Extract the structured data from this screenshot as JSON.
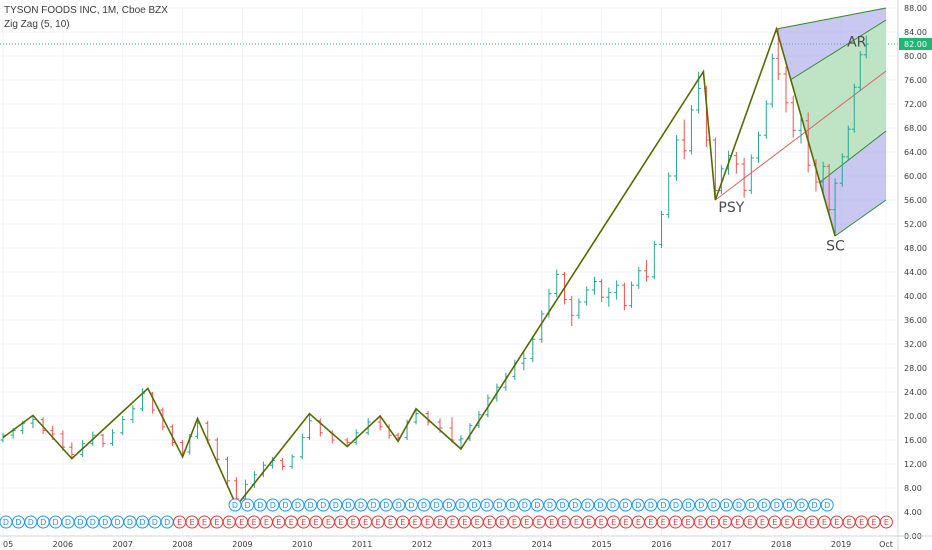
{
  "header": {
    "symbol_line": "TYSON FOODS INC, 1M, Cboe BZX",
    "indicator_line": "Zig Zag (5, 10)"
  },
  "colors": {
    "up_bar": "#26a69a",
    "down_bar": "#ef5350",
    "zigzag": "#556b00",
    "channel_fill_outer": "#9b9be8",
    "channel_fill_inner": "#bde9bd",
    "channel_line": "#2e8b2e",
    "median_line": "#e06060",
    "price_line": "#22b573",
    "dividend": "#2196f3",
    "earnings": "#e53935"
  },
  "chart_data": {
    "type": "candlestick-ohlc",
    "title": "TYSON FOODS INC, 1M, Cboe BZX",
    "x_axis_labels": [
      "05",
      "2006",
      "2007",
      "2008",
      "2009",
      "2010",
      "2011",
      "2012",
      "2013",
      "2014",
      "2015",
      "2016",
      "2017",
      "2018",
      "2019",
      "Oct"
    ],
    "y_axis_labels": [
      "88.00",
      "84.00",
      "80.00",
      "76.00",
      "72.00",
      "68.00",
      "64.00",
      "60.00",
      "56.00",
      "52.00",
      "48.00",
      "44.00",
      "40.00",
      "36.00",
      "32.00",
      "28.00",
      "24.00",
      "20.00",
      "16.00",
      "12.00",
      "8.00",
      "4.00",
      "0.00"
    ],
    "ylim": [
      0,
      88
    ],
    "last_price_label": "82.00",
    "last_price": 82.0,
    "zigzag_points": [
      {
        "x": 2005.0,
        "y": 16.4
      },
      {
        "x": 2005.5,
        "y": 20.1
      },
      {
        "x": 2006.15,
        "y": 12.9
      },
      {
        "x": 2007.42,
        "y": 24.6
      },
      {
        "x": 2008.0,
        "y": 13.2
      },
      {
        "x": 2008.25,
        "y": 19.6
      },
      {
        "x": 2008.9,
        "y": 5.0
      },
      {
        "x": 2010.12,
        "y": 20.4
      },
      {
        "x": 2010.75,
        "y": 14.9
      },
      {
        "x": 2011.3,
        "y": 20.0
      },
      {
        "x": 2011.6,
        "y": 15.8
      },
      {
        "x": 2011.9,
        "y": 21.2
      },
      {
        "x": 2012.65,
        "y": 14.5
      },
      {
        "x": 2016.7,
        "y": 77.4
      },
      {
        "x": 2016.9,
        "y": 56.0
      },
      {
        "x": 2017.92,
        "y": 84.5
      },
      {
        "x": 2018.9,
        "y": 50.0
      }
    ],
    "bars": [
      {
        "t": 2005.0,
        "o": 16.0,
        "h": 17.2,
        "l": 15.6,
        "c": 16.8
      },
      {
        "t": 2005.17,
        "o": 16.8,
        "h": 18.0,
        "l": 16.2,
        "c": 17.6
      },
      {
        "t": 2005.33,
        "o": 17.6,
        "h": 19.2,
        "l": 17.0,
        "c": 18.8
      },
      {
        "t": 2005.5,
        "o": 18.8,
        "h": 20.1,
        "l": 18.0,
        "c": 19.4
      },
      {
        "t": 2005.67,
        "o": 19.4,
        "h": 19.8,
        "l": 17.0,
        "c": 17.6
      },
      {
        "t": 2005.83,
        "o": 17.6,
        "h": 18.4,
        "l": 16.0,
        "c": 17.0
      },
      {
        "t": 2006.0,
        "o": 17.0,
        "h": 17.6,
        "l": 14.2,
        "c": 14.8
      },
      {
        "t": 2006.15,
        "o": 14.8,
        "h": 15.6,
        "l": 12.9,
        "c": 13.6
      },
      {
        "t": 2006.33,
        "o": 13.6,
        "h": 16.0,
        "l": 13.2,
        "c": 15.4
      },
      {
        "t": 2006.5,
        "o": 15.4,
        "h": 17.4,
        "l": 15.0,
        "c": 16.8
      },
      {
        "t": 2006.67,
        "o": 16.8,
        "h": 17.0,
        "l": 14.8,
        "c": 15.4
      },
      {
        "t": 2006.83,
        "o": 15.4,
        "h": 17.8,
        "l": 15.0,
        "c": 17.2
      },
      {
        "t": 2007.0,
        "o": 17.2,
        "h": 20.0,
        "l": 16.8,
        "c": 19.4
      },
      {
        "t": 2007.17,
        "o": 19.4,
        "h": 21.8,
        "l": 18.8,
        "c": 21.2
      },
      {
        "t": 2007.33,
        "o": 21.2,
        "h": 24.6,
        "l": 20.8,
        "c": 23.8
      },
      {
        "t": 2007.5,
        "o": 23.8,
        "h": 24.0,
        "l": 20.4,
        "c": 21.0
      },
      {
        "t": 2007.67,
        "o": 21.0,
        "h": 21.4,
        "l": 17.6,
        "c": 18.2
      },
      {
        "t": 2007.83,
        "o": 18.2,
        "h": 18.6,
        "l": 15.0,
        "c": 15.6
      },
      {
        "t": 2008.0,
        "o": 15.6,
        "h": 16.0,
        "l": 13.2,
        "c": 14.0
      },
      {
        "t": 2008.12,
        "o": 14.0,
        "h": 17.0,
        "l": 13.6,
        "c": 16.6
      },
      {
        "t": 2008.25,
        "o": 16.6,
        "h": 19.6,
        "l": 16.2,
        "c": 18.8
      },
      {
        "t": 2008.42,
        "o": 18.8,
        "h": 19.2,
        "l": 15.4,
        "c": 16.0
      },
      {
        "t": 2008.58,
        "o": 16.0,
        "h": 16.4,
        "l": 12.0,
        "c": 12.8
      },
      {
        "t": 2008.75,
        "o": 12.8,
        "h": 13.2,
        "l": 8.6,
        "c": 9.2
      },
      {
        "t": 2008.9,
        "o": 9.2,
        "h": 9.8,
        "l": 5.0,
        "c": 6.2
      },
      {
        "t": 2009.05,
        "o": 6.2,
        "h": 9.4,
        "l": 5.8,
        "c": 8.6
      },
      {
        "t": 2009.2,
        "o": 8.6,
        "h": 10.8,
        "l": 8.0,
        "c": 10.2
      },
      {
        "t": 2009.35,
        "o": 10.2,
        "h": 12.4,
        "l": 9.8,
        "c": 11.8
      },
      {
        "t": 2009.5,
        "o": 11.8,
        "h": 13.2,
        "l": 11.2,
        "c": 12.6
      },
      {
        "t": 2009.67,
        "o": 12.6,
        "h": 13.0,
        "l": 11.0,
        "c": 11.6
      },
      {
        "t": 2009.83,
        "o": 11.6,
        "h": 13.6,
        "l": 11.2,
        "c": 13.2
      },
      {
        "t": 2010.0,
        "o": 13.2,
        "h": 17.0,
        "l": 12.8,
        "c": 16.4
      },
      {
        "t": 2010.12,
        "o": 16.4,
        "h": 20.4,
        "l": 16.0,
        "c": 19.2
      },
      {
        "t": 2010.3,
        "o": 19.2,
        "h": 19.6,
        "l": 16.6,
        "c": 17.2
      },
      {
        "t": 2010.5,
        "o": 17.2,
        "h": 17.6,
        "l": 15.4,
        "c": 16.0
      },
      {
        "t": 2010.75,
        "o": 16.0,
        "h": 16.4,
        "l": 14.9,
        "c": 15.6
      },
      {
        "t": 2010.9,
        "o": 15.6,
        "h": 17.8,
        "l": 15.2,
        "c": 17.2
      },
      {
        "t": 2011.1,
        "o": 17.2,
        "h": 19.6,
        "l": 16.8,
        "c": 19.0
      },
      {
        "t": 2011.3,
        "o": 19.0,
        "h": 20.0,
        "l": 17.6,
        "c": 18.2
      },
      {
        "t": 2011.45,
        "o": 18.2,
        "h": 18.6,
        "l": 16.2,
        "c": 16.8
      },
      {
        "t": 2011.6,
        "o": 16.8,
        "h": 17.2,
        "l": 15.8,
        "c": 16.4
      },
      {
        "t": 2011.75,
        "o": 16.4,
        "h": 19.4,
        "l": 16.0,
        "c": 19.0
      },
      {
        "t": 2011.9,
        "o": 19.0,
        "h": 21.2,
        "l": 18.6,
        "c": 20.4
      },
      {
        "t": 2012.1,
        "o": 20.4,
        "h": 20.8,
        "l": 18.4,
        "c": 19.0
      },
      {
        "t": 2012.3,
        "o": 19.0,
        "h": 19.6,
        "l": 17.2,
        "c": 18.0
      },
      {
        "t": 2012.5,
        "o": 18.0,
        "h": 19.8,
        "l": 15.6,
        "c": 16.0
      },
      {
        "t": 2012.65,
        "o": 16.0,
        "h": 16.8,
        "l": 14.5,
        "c": 16.2
      },
      {
        "t": 2012.8,
        "o": 16.2,
        "h": 18.8,
        "l": 15.8,
        "c": 18.4
      },
      {
        "t": 2012.95,
        "o": 18.4,
        "h": 20.8,
        "l": 18.0,
        "c": 20.2
      },
      {
        "t": 2013.1,
        "o": 20.2,
        "h": 23.6,
        "l": 19.8,
        "c": 23.0
      },
      {
        "t": 2013.25,
        "o": 23.0,
        "h": 25.4,
        "l": 22.4,
        "c": 24.8
      },
      {
        "t": 2013.4,
        "o": 24.8,
        "h": 27.2,
        "l": 24.2,
        "c": 26.6
      },
      {
        "t": 2013.55,
        "o": 26.6,
        "h": 29.4,
        "l": 26.0,
        "c": 28.8
      },
      {
        "t": 2013.7,
        "o": 28.8,
        "h": 30.6,
        "l": 27.6,
        "c": 29.6
      },
      {
        "t": 2013.85,
        "o": 29.6,
        "h": 33.4,
        "l": 29.0,
        "c": 32.8
      },
      {
        "t": 2014.0,
        "o": 32.8,
        "h": 37.6,
        "l": 32.2,
        "c": 37.0
      },
      {
        "t": 2014.12,
        "o": 37.0,
        "h": 41.2,
        "l": 36.4,
        "c": 40.4
      },
      {
        "t": 2014.25,
        "o": 40.4,
        "h": 44.4,
        "l": 39.8,
        "c": 43.6
      },
      {
        "t": 2014.38,
        "o": 43.6,
        "h": 44.0,
        "l": 38.6,
        "c": 39.4
      },
      {
        "t": 2014.5,
        "o": 39.4,
        "h": 40.0,
        "l": 35.0,
        "c": 36.8
      },
      {
        "t": 2014.62,
        "o": 36.8,
        "h": 39.6,
        "l": 36.2,
        "c": 39.0
      },
      {
        "t": 2014.75,
        "o": 39.0,
        "h": 41.6,
        "l": 38.4,
        "c": 41.0
      },
      {
        "t": 2014.88,
        "o": 41.0,
        "h": 43.2,
        "l": 40.2,
        "c": 42.4
      },
      {
        "t": 2015.0,
        "o": 42.4,
        "h": 42.8,
        "l": 39.0,
        "c": 39.8
      },
      {
        "t": 2015.12,
        "o": 39.8,
        "h": 41.4,
        "l": 38.2,
        "c": 40.6
      },
      {
        "t": 2015.25,
        "o": 40.6,
        "h": 42.6,
        "l": 39.4,
        "c": 41.8
      },
      {
        "t": 2015.38,
        "o": 41.8,
        "h": 42.2,
        "l": 37.6,
        "c": 38.4
      },
      {
        "t": 2015.5,
        "o": 38.4,
        "h": 42.4,
        "l": 38.0,
        "c": 41.8
      },
      {
        "t": 2015.62,
        "o": 41.8,
        "h": 44.8,
        "l": 41.2,
        "c": 44.2
      },
      {
        "t": 2015.75,
        "o": 44.2,
        "h": 46.0,
        "l": 42.4,
        "c": 43.2
      },
      {
        "t": 2015.88,
        "o": 43.2,
        "h": 49.2,
        "l": 42.8,
        "c": 48.6
      },
      {
        "t": 2016.0,
        "o": 48.6,
        "h": 54.2,
        "l": 48.0,
        "c": 53.6
      },
      {
        "t": 2016.12,
        "o": 53.6,
        "h": 60.6,
        "l": 53.0,
        "c": 60.0
      },
      {
        "t": 2016.25,
        "o": 60.0,
        "h": 66.8,
        "l": 59.2,
        "c": 66.0
      },
      {
        "t": 2016.38,
        "o": 66.0,
        "h": 69.4,
        "l": 62.8,
        "c": 64.2
      },
      {
        "t": 2016.5,
        "o": 64.2,
        "h": 71.8,
        "l": 63.6,
        "c": 71.0
      },
      {
        "t": 2016.62,
        "o": 71.0,
        "h": 77.4,
        "l": 70.4,
        "c": 74.6
      },
      {
        "t": 2016.75,
        "o": 74.6,
        "h": 75.0,
        "l": 64.8,
        "c": 66.0
      },
      {
        "t": 2016.9,
        "o": 66.0,
        "h": 66.4,
        "l": 56.0,
        "c": 57.6
      },
      {
        "t": 2017.0,
        "o": 57.6,
        "h": 61.8,
        "l": 57.0,
        "c": 61.2
      },
      {
        "t": 2017.12,
        "o": 61.2,
        "h": 64.2,
        "l": 60.2,
        "c": 63.4
      },
      {
        "t": 2017.25,
        "o": 63.4,
        "h": 64.0,
        "l": 60.4,
        "c": 62.0
      },
      {
        "t": 2017.38,
        "o": 62.0,
        "h": 63.0,
        "l": 56.4,
        "c": 57.6
      },
      {
        "t": 2017.5,
        "o": 57.6,
        "h": 63.6,
        "l": 57.0,
        "c": 63.0
      },
      {
        "t": 2017.62,
        "o": 63.0,
        "h": 67.4,
        "l": 62.2,
        "c": 66.8
      },
      {
        "t": 2017.75,
        "o": 66.8,
        "h": 72.6,
        "l": 66.2,
        "c": 72.0
      },
      {
        "t": 2017.85,
        "o": 72.0,
        "h": 80.4,
        "l": 71.4,
        "c": 79.6
      },
      {
        "t": 2017.95,
        "o": 79.6,
        "h": 84.5,
        "l": 76.0,
        "c": 77.0
      },
      {
        "t": 2018.08,
        "o": 77.0,
        "h": 78.2,
        "l": 70.6,
        "c": 72.2
      },
      {
        "t": 2018.2,
        "o": 72.2,
        "h": 73.4,
        "l": 66.4,
        "c": 67.6
      },
      {
        "t": 2018.33,
        "o": 67.6,
        "h": 70.4,
        "l": 65.4,
        "c": 69.2
      },
      {
        "t": 2018.45,
        "o": 69.2,
        "h": 70.6,
        "l": 60.6,
        "c": 61.8
      },
      {
        "t": 2018.58,
        "o": 61.8,
        "h": 62.8,
        "l": 57.4,
        "c": 59.0
      },
      {
        "t": 2018.7,
        "o": 59.0,
        "h": 62.4,
        "l": 57.2,
        "c": 61.6
      },
      {
        "t": 2018.8,
        "o": 61.6,
        "h": 62.0,
        "l": 53.6,
        "c": 54.4
      },
      {
        "t": 2018.9,
        "o": 54.4,
        "h": 59.6,
        "l": 50.0,
        "c": 58.8
      },
      {
        "t": 2019.02,
        "o": 58.8,
        "h": 63.8,
        "l": 58.2,
        "c": 63.2
      },
      {
        "t": 2019.12,
        "o": 63.2,
        "h": 68.4,
        "l": 62.6,
        "c": 67.8
      },
      {
        "t": 2019.22,
        "o": 67.8,
        "h": 75.4,
        "l": 67.2,
        "c": 74.8
      },
      {
        "t": 2019.32,
        "o": 74.8,
        "h": 80.8,
        "l": 74.2,
        "c": 80.2
      },
      {
        "t": 2019.42,
        "o": 80.2,
        "h": 83.4,
        "l": 79.6,
        "c": 82.0
      }
    ],
    "annotations": [
      {
        "text": "PSY",
        "x": 2016.95,
        "y": 54.0
      },
      {
        "text": "SC",
        "x": 2018.75,
        "y": 47.6
      },
      {
        "text": "AR",
        "x": 2019.1,
        "y": 81.6
      }
    ],
    "events_row_dividends": [
      "D",
      "D",
      "D",
      "D",
      "D",
      "D",
      "D",
      "D",
      "D",
      "D",
      "D",
      "D",
      "D",
      "D",
      "D",
      "D",
      "D",
      "D",
      "D",
      "D",
      "D",
      "D",
      "D",
      "D",
      "D",
      "D",
      "D",
      "D",
      "D",
      "D",
      "D",
      "D",
      "D",
      "D",
      "D",
      "D",
      "D",
      "D",
      "D",
      "D",
      "D",
      "D",
      "D",
      "D",
      "D",
      "D",
      "D",
      "D"
    ],
    "events_row_earnings": [
      "D",
      "D",
      "D",
      "D",
      "D",
      "D",
      "D",
      "D",
      "D",
      "D",
      "D",
      "D",
      "D",
      "D",
      "E",
      "E",
      "E",
      "E",
      "E",
      "E",
      "E",
      "E",
      "E",
      "E",
      "E",
      "E",
      "E",
      "E",
      "E",
      "E",
      "E",
      "E",
      "E",
      "E",
      "E",
      "E",
      "E",
      "E",
      "E",
      "E",
      "E",
      "E",
      "E",
      "E",
      "E",
      "E",
      "E",
      "E",
      "E",
      "E",
      "E",
      "E",
      "E",
      "E",
      "E",
      "E",
      "E",
      "E",
      "E",
      "E",
      "E",
      "E",
      "E",
      "E",
      "E",
      "E",
      "E",
      "E",
      "E",
      "E",
      "E",
      "E",
      "E",
      "E",
      "E",
      "E",
      "E",
      "E",
      "E",
      "E",
      "E",
      "E",
      "E",
      "E",
      "E",
      "E",
      "E"
    ]
  }
}
